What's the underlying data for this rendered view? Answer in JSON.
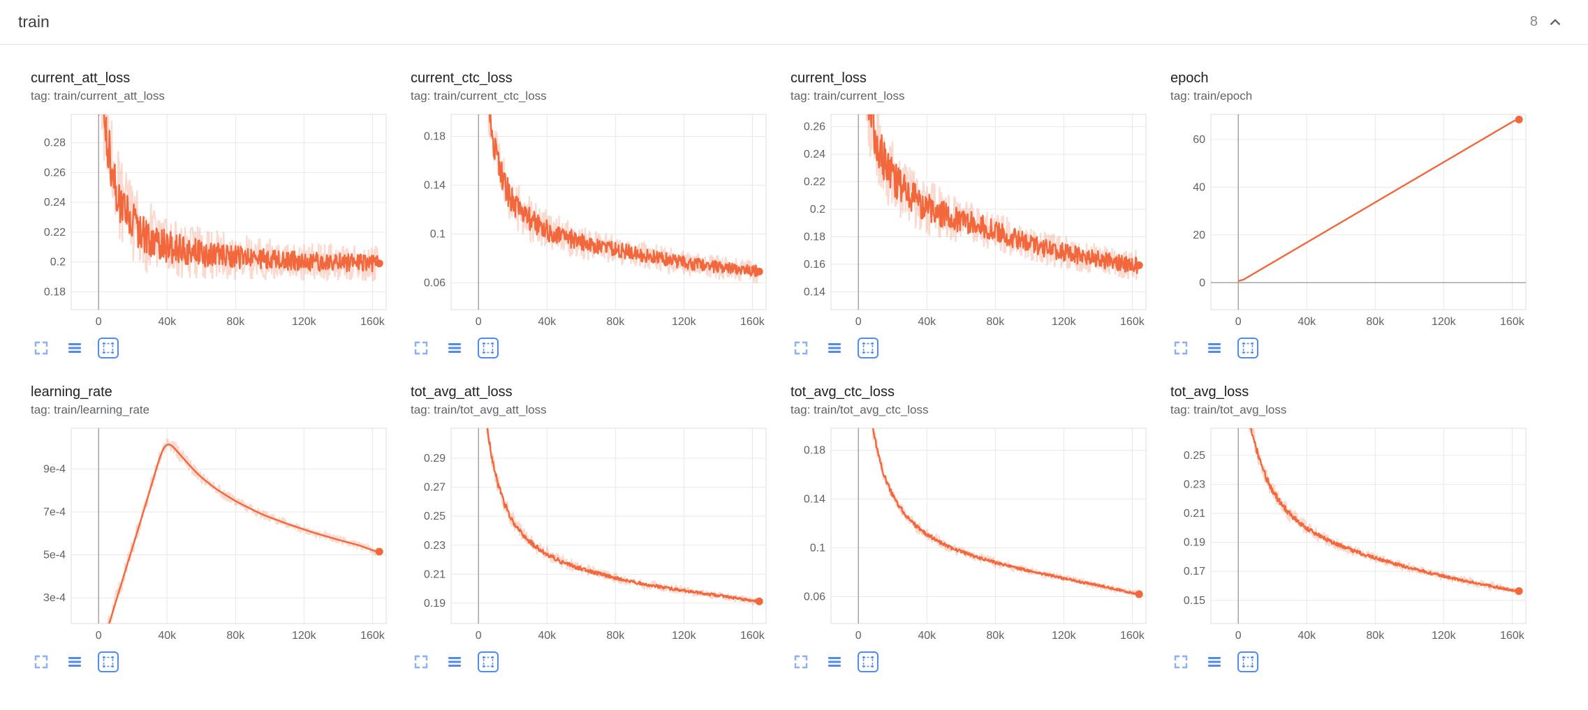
{
  "header": {
    "title": "train",
    "count": "8"
  },
  "icons": {
    "collapse": "chevron-up-icon",
    "card_actions": [
      "fullscreen-icon",
      "data-table-icon",
      "fit-domain-icon"
    ]
  },
  "colors": {
    "accent": "#f2683c",
    "raw_line": "rgba(242,104,60,0.25)",
    "grid": "#e8e8e8",
    "plot_border": "#dedede",
    "zero_axis": "#9e9e9e",
    "tick_text": "#616161",
    "icon_blue": "#4e8af2",
    "icon_blue_light": "#8ab0f8"
  },
  "chart_data": [
    {
      "type": "line",
      "title": "current_att_loss",
      "tag": "tag: train/current_att_loss",
      "xlabel": "",
      "ylabel": "",
      "grid": true,
      "xlim": [
        -16000,
        168000
      ],
      "ylim": [
        0.168,
        0.299
      ],
      "xticks": [
        [
          0,
          "0"
        ],
        [
          40000,
          "40k"
        ],
        [
          80000,
          "80k"
        ],
        [
          120000,
          "120k"
        ],
        [
          160000,
          "160k"
        ]
      ],
      "yticks": [
        [
          0.28,
          "0.28"
        ],
        [
          0.26,
          "0.26"
        ],
        [
          0.24,
          "0.24"
        ],
        [
          0.22,
          "0.22"
        ],
        [
          0.2,
          "0.2"
        ],
        [
          0.18,
          "0.18"
        ]
      ],
      "trend": [
        [
          0,
          0.34
        ],
        [
          3000,
          0.301
        ],
        [
          6000,
          0.272
        ],
        [
          10000,
          0.25
        ],
        [
          15000,
          0.234
        ],
        [
          20000,
          0.225
        ],
        [
          30000,
          0.2155
        ],
        [
          40000,
          0.2105
        ],
        [
          55000,
          0.2065
        ],
        [
          70000,
          0.2045
        ],
        [
          90000,
          0.2025
        ],
        [
          110000,
          0.201
        ],
        [
          130000,
          0.2
        ],
        [
          150000,
          0.1992
        ],
        [
          164000,
          0.199
        ]
      ],
      "noise_smoothed": 0.008,
      "noise_raw": 0.016,
      "zero_y_axis": false,
      "end_marker": true
    },
    {
      "type": "line",
      "title": "current_ctc_loss",
      "tag": "tag: train/current_ctc_loss",
      "xlabel": "",
      "ylabel": "",
      "grid": true,
      "xlim": [
        -16000,
        168000
      ],
      "ylim": [
        0.038,
        0.198
      ],
      "xticks": [
        [
          0,
          "0"
        ],
        [
          40000,
          "40k"
        ],
        [
          80000,
          "80k"
        ],
        [
          120000,
          "120k"
        ],
        [
          160000,
          "160k"
        ]
      ],
      "yticks": [
        [
          0.18,
          "0.18"
        ],
        [
          0.14,
          "0.14"
        ],
        [
          0.1,
          "0.1"
        ],
        [
          0.06,
          "0.06"
        ]
      ],
      "trend": [
        [
          0,
          0.3
        ],
        [
          3000,
          0.242
        ],
        [
          6000,
          0.198
        ],
        [
          10000,
          0.165
        ],
        [
          15000,
          0.14
        ],
        [
          20000,
          0.126
        ],
        [
          30000,
          0.111
        ],
        [
          40000,
          0.103
        ],
        [
          55000,
          0.0955
        ],
        [
          70000,
          0.0905
        ],
        [
          90000,
          0.0845
        ],
        [
          110000,
          0.079
        ],
        [
          130000,
          0.0745
        ],
        [
          150000,
          0.071
        ],
        [
          164000,
          0.069
        ]
      ],
      "noise_smoothed": 0.0065,
      "noise_raw": 0.013,
      "zero_y_axis": false,
      "end_marker": true
    },
    {
      "type": "line",
      "title": "current_loss",
      "tag": "tag: train/current_loss",
      "xlabel": "",
      "ylabel": "",
      "grid": true,
      "xlim": [
        -16000,
        168000
      ],
      "ylim": [
        0.127,
        0.269
      ],
      "xticks": [
        [
          0,
          "0"
        ],
        [
          40000,
          "40k"
        ],
        [
          80000,
          "80k"
        ],
        [
          120000,
          "120k"
        ],
        [
          160000,
          "160k"
        ]
      ],
      "yticks": [
        [
          0.26,
          "0.26"
        ],
        [
          0.24,
          "0.24"
        ],
        [
          0.22,
          "0.22"
        ],
        [
          0.2,
          "0.2"
        ],
        [
          0.18,
          "0.18"
        ],
        [
          0.16,
          "0.16"
        ],
        [
          0.14,
          "0.14"
        ]
      ],
      "trend": [
        [
          0,
          0.34
        ],
        [
          3000,
          0.3
        ],
        [
          6000,
          0.272
        ],
        [
          10000,
          0.251
        ],
        [
          15000,
          0.2345
        ],
        [
          20000,
          0.2235
        ],
        [
          30000,
          0.2095
        ],
        [
          40000,
          0.2015
        ],
        [
          55000,
          0.1935
        ],
        [
          70000,
          0.1885
        ],
        [
          90000,
          0.1795
        ],
        [
          110000,
          0.1715
        ],
        [
          130000,
          0.166
        ],
        [
          150000,
          0.1615
        ],
        [
          164000,
          0.159
        ]
      ],
      "noise_smoothed": 0.008,
      "noise_raw": 0.015,
      "zero_y_axis": false,
      "end_marker": true
    },
    {
      "type": "line",
      "title": "epoch",
      "tag": "tag: train/epoch",
      "xlabel": "",
      "ylabel": "",
      "grid": true,
      "xlim": [
        -16000,
        168000
      ],
      "ylim": [
        -11.3,
        70.5
      ],
      "xticks": [
        [
          0,
          "0"
        ],
        [
          40000,
          "40k"
        ],
        [
          80000,
          "80k"
        ],
        [
          120000,
          "120k"
        ],
        [
          160000,
          "160k"
        ]
      ],
      "yticks": [
        [
          60,
          "60"
        ],
        [
          40,
          "40"
        ],
        [
          20,
          "20"
        ],
        [
          0,
          "0"
        ]
      ],
      "trend": [
        [
          0,
          0
        ],
        [
          164000,
          69
        ]
      ],
      "noise_smoothed": 0,
      "noise_raw": 0,
      "zero_y_axis": true,
      "end_marker": true
    },
    {
      "type": "line",
      "title": "learning_rate",
      "tag": "tag: train/learning_rate",
      "xlabel": "",
      "ylabel": "",
      "grid": true,
      "xlim": [
        -16000,
        168000
      ],
      "ylim": [
        0.00018,
        0.00109
      ],
      "xticks": [
        [
          0,
          "0"
        ],
        [
          40000,
          "40k"
        ],
        [
          80000,
          "80k"
        ],
        [
          120000,
          "120k"
        ],
        [
          160000,
          "160k"
        ]
      ],
      "yticks": [
        [
          0.0009,
          "9e-4"
        ],
        [
          0.0007,
          "7e-4"
        ],
        [
          0.0005,
          "5e-4"
        ],
        [
          0.0003,
          "3e-4"
        ]
      ],
      "trend": [
        [
          0,
          2e-05
        ],
        [
          5000,
          0.00015
        ],
        [
          10000,
          0.00028
        ],
        [
          15000,
          0.00041
        ],
        [
          20000,
          0.00054
        ],
        [
          25000,
          0.00067
        ],
        [
          30000,
          0.0008
        ],
        [
          34000,
          0.00091
        ],
        [
          37000,
          0.00099
        ],
        [
          40000,
          0.00103
        ],
        [
          44000,
          0.001
        ],
        [
          50000,
          0.000945
        ],
        [
          58000,
          0.000875
        ],
        [
          68000,
          0.00081
        ],
        [
          80000,
          0.00075
        ],
        [
          95000,
          0.00069
        ],
        [
          110000,
          0.000645
        ],
        [
          125000,
          0.000605
        ],
        [
          140000,
          0.00057
        ],
        [
          152000,
          0.000545
        ],
        [
          164000,
          0.00051
        ]
      ],
      "noise_smoothed": 0,
      "noise_raw": 2.5e-05,
      "zero_y_axis": false,
      "end_marker": true
    },
    {
      "type": "line",
      "title": "tot_avg_att_loss",
      "tag": "tag: train/tot_avg_att_loss",
      "xlabel": "",
      "ylabel": "",
      "grid": true,
      "xlim": [
        -16000,
        168000
      ],
      "ylim": [
        0.176,
        0.3107
      ],
      "xticks": [
        [
          0,
          "0"
        ],
        [
          40000,
          "40k"
        ],
        [
          80000,
          "80k"
        ],
        [
          120000,
          "120k"
        ],
        [
          160000,
          "160k"
        ]
      ],
      "yticks": [
        [
          0.29,
          "0.29"
        ],
        [
          0.27,
          "0.27"
        ],
        [
          0.25,
          "0.25"
        ],
        [
          0.23,
          "0.23"
        ],
        [
          0.21,
          "0.21"
        ],
        [
          0.19,
          "0.19"
        ]
      ],
      "trend": [
        [
          0,
          0.36
        ],
        [
          3000,
          0.327
        ],
        [
          6000,
          0.301
        ],
        [
          10000,
          0.277
        ],
        [
          15000,
          0.258
        ],
        [
          20000,
          0.2465
        ],
        [
          27000,
          0.2355
        ],
        [
          35000,
          0.2275
        ],
        [
          45000,
          0.2205
        ],
        [
          55000,
          0.2155
        ],
        [
          70000,
          0.2105
        ],
        [
          85000,
          0.206
        ],
        [
          100000,
          0.2025
        ],
        [
          115000,
          0.1995
        ],
        [
          130000,
          0.197
        ],
        [
          145000,
          0.1945
        ],
        [
          164000,
          0.191
        ]
      ],
      "noise_smoothed": 0.0012,
      "noise_raw": 0.0035,
      "zero_y_axis": false,
      "end_marker": true
    },
    {
      "type": "line",
      "title": "tot_avg_ctc_loss",
      "tag": "tag: train/tot_avg_ctc_loss",
      "xlabel": "",
      "ylabel": "",
      "grid": true,
      "xlim": [
        -16000,
        168000
      ],
      "ylim": [
        0.038,
        0.198
      ],
      "xticks": [
        [
          0,
          "0"
        ],
        [
          40000,
          "40k"
        ],
        [
          80000,
          "80k"
        ],
        [
          120000,
          "120k"
        ],
        [
          160000,
          "160k"
        ]
      ],
      "yticks": [
        [
          0.18,
          "0.18"
        ],
        [
          0.14,
          "0.14"
        ],
        [
          0.1,
          "0.1"
        ],
        [
          0.06,
          "0.06"
        ]
      ],
      "trend": [
        [
          0,
          0.32
        ],
        [
          3000,
          0.262
        ],
        [
          6000,
          0.218
        ],
        [
          10000,
          0.184
        ],
        [
          15000,
          0.158
        ],
        [
          20000,
          0.1425
        ],
        [
          27000,
          0.1275
        ],
        [
          35000,
          0.116
        ],
        [
          45000,
          0.1065
        ],
        [
          55000,
          0.0995
        ],
        [
          70000,
          0.092
        ],
        [
          85000,
          0.086
        ],
        [
          100000,
          0.081
        ],
        [
          115000,
          0.0765
        ],
        [
          130000,
          0.072
        ],
        [
          145000,
          0.068
        ],
        [
          164000,
          0.0615
        ]
      ],
      "noise_smoothed": 0.0012,
      "noise_raw": 0.0035,
      "zero_y_axis": false,
      "end_marker": true
    },
    {
      "type": "line",
      "title": "tot_avg_loss",
      "tag": "tag: train/tot_avg_loss",
      "xlabel": "",
      "ylabel": "",
      "grid": true,
      "xlim": [
        -16000,
        168000
      ],
      "ylim": [
        0.134,
        0.2688
      ],
      "xticks": [
        [
          0,
          "0"
        ],
        [
          40000,
          "40k"
        ],
        [
          80000,
          "80k"
        ],
        [
          120000,
          "120k"
        ],
        [
          160000,
          "160k"
        ]
      ],
      "yticks": [
        [
          0.25,
          "0.25"
        ],
        [
          0.23,
          "0.23"
        ],
        [
          0.21,
          "0.21"
        ],
        [
          0.19,
          "0.19"
        ],
        [
          0.17,
          "0.17"
        ],
        [
          0.15,
          "0.15"
        ]
      ],
      "trend": [
        [
          0,
          0.33
        ],
        [
          3000,
          0.3
        ],
        [
          6000,
          0.277
        ],
        [
          10000,
          0.2555
        ],
        [
          15000,
          0.2375
        ],
        [
          20000,
          0.2255
        ],
        [
          27000,
          0.2135
        ],
        [
          35000,
          0.204
        ],
        [
          45000,
          0.196
        ],
        [
          55000,
          0.19
        ],
        [
          70000,
          0.183
        ],
        [
          85000,
          0.1775
        ],
        [
          100000,
          0.1725
        ],
        [
          115000,
          0.168
        ],
        [
          130000,
          0.164
        ],
        [
          145000,
          0.1605
        ],
        [
          164000,
          0.156
        ]
      ],
      "noise_smoothed": 0.0012,
      "noise_raw": 0.0035,
      "zero_y_axis": false,
      "end_marker": true
    }
  ]
}
